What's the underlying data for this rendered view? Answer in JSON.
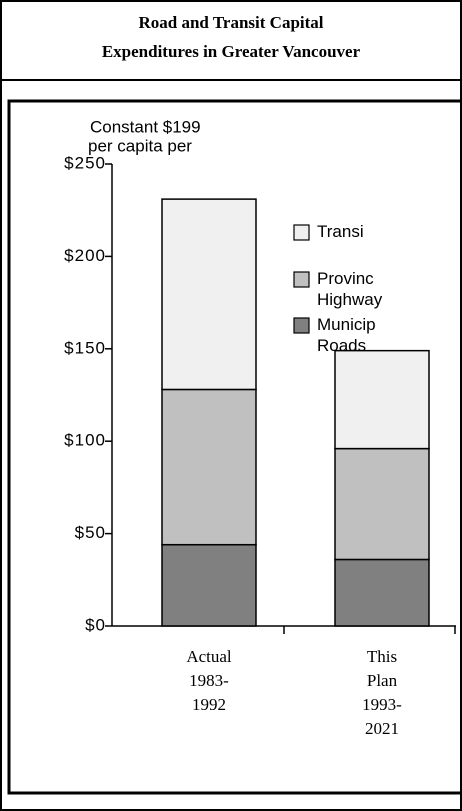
{
  "chart_data": {
    "type": "stacked_bar",
    "title": [
      "Road and Transit Capital",
      "Expenditures in Greater Vancouver"
    ],
    "y_axis_note": [
      "Constant $199",
      "per capita per"
    ],
    "categories": [
      "Actual 1983-1992",
      "This Plan 1993-2021"
    ],
    "series": [
      {
        "name": "Municip Roads",
        "color": "#808080",
        "values": [
          44,
          36
        ]
      },
      {
        "name": "Provinc Highway",
        "color": "#c0c0c0",
        "values": [
          84,
          60
        ]
      },
      {
        "name": "Transi",
        "color": "#f0f0f0",
        "values": [
          103,
          53
        ]
      }
    ],
    "ylim": [
      0,
      250
    ],
    "yticks": [
      {
        "value": 0,
        "label": "$0"
      },
      {
        "value": 50,
        "label": "$50"
      },
      {
        "value": 100,
        "label": "$100"
      },
      {
        "value": 150,
        "label": "$150"
      },
      {
        "value": 200,
        "label": "$200"
      },
      {
        "value": 250,
        "label": "$250"
      }
    ],
    "legend": "top-right"
  }
}
